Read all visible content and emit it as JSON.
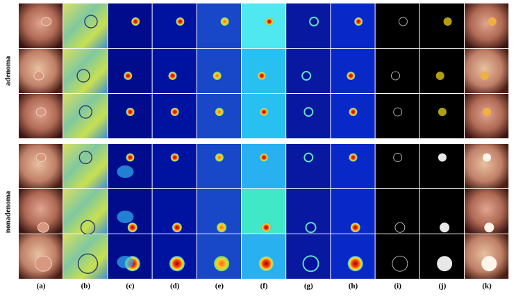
{
  "row_groups": [
    "adenoma",
    "nonadenoma"
  ],
  "columns": [
    "(a)",
    "(b)",
    "(c)",
    "(d)",
    "(e)",
    "(f)",
    "(g)",
    "(h)",
    "(i)",
    "(j)",
    "(k)"
  ]
}
